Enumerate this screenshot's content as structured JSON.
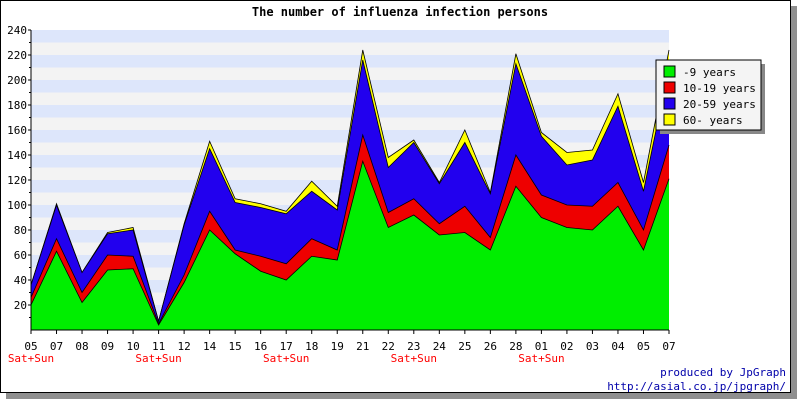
{
  "title": "The number of influenza infection persons",
  "credit": {
    "line1": "produced by JpGraph",
    "line2": "http://asial.co.jp/jpgraph/"
  },
  "colors": {
    "band_a": "#dde6fb",
    "band_b": "#f3f3f3",
    "weekend": "#ff0000",
    "credit": "#0000aa",
    "legend_bg": "#f4f4f4",
    "legend_shadow": "#888888"
  },
  "chart_data": {
    "type": "area",
    "stacked": true,
    "title": "The number of influenza infection persons",
    "xlabel": "",
    "ylabel": "",
    "ylim": [
      0,
      240
    ],
    "yticks": [
      20,
      40,
      60,
      80,
      100,
      120,
      140,
      160,
      180,
      200,
      220,
      240
    ],
    "grid": "alternating horizontal bands",
    "legend_position": "top-right",
    "x": [
      "05",
      "07",
      "08",
      "09",
      "10",
      "11",
      "12",
      "14",
      "15",
      "16",
      "17",
      "18",
      "19",
      "21",
      "22",
      "23",
      "24",
      "25",
      "26",
      "28",
      "01",
      "02",
      "03",
      "04",
      "05",
      "07"
    ],
    "weekend_markers": [
      {
        "index": 0,
        "label": "Sat+Sun"
      },
      {
        "index": 5,
        "label": "Sat+Sun"
      },
      {
        "index": 10,
        "label": "Sat+Sun"
      },
      {
        "index": 15,
        "label": "Sat+Sun"
      },
      {
        "index": 20,
        "label": "Sat+Sun"
      }
    ],
    "series": [
      {
        "name": "-9 years",
        "color": "#00ee00",
        "values": [
          20,
          63,
          22,
          48,
          49,
          4,
          38,
          80,
          61,
          47,
          40,
          59,
          56,
          135,
          82,
          92,
          76,
          78,
          64,
          115,
          90,
          82,
          80,
          99,
          64,
          121
        ]
      },
      {
        "name": "10-19 years",
        "color": "#ee0000",
        "values": [
          6,
          10,
          8,
          12,
          10,
          1,
          6,
          15,
          3,
          12,
          13,
          14,
          8,
          21,
          12,
          13,
          9,
          21,
          10,
          25,
          18,
          18,
          19,
          19,
          16,
          27
        ]
      },
      {
        "name": "20-59 years",
        "color": "#2200ee",
        "values": [
          10,
          27,
          16,
          17,
          21,
          2,
          40,
          50,
          38,
          39,
          40,
          38,
          32,
          60,
          36,
          45,
          32,
          51,
          35,
          73,
          47,
          32,
          37,
          61,
          31,
          62
        ]
      },
      {
        "name": "60- years",
        "color": "#ffff00",
        "values": [
          0,
          1,
          0,
          1,
          2,
          0,
          1,
          6,
          3,
          3,
          2,
          8,
          3,
          8,
          8,
          2,
          1,
          10,
          1,
          8,
          3,
          10,
          8,
          10,
          7,
          14
        ]
      }
    ]
  }
}
